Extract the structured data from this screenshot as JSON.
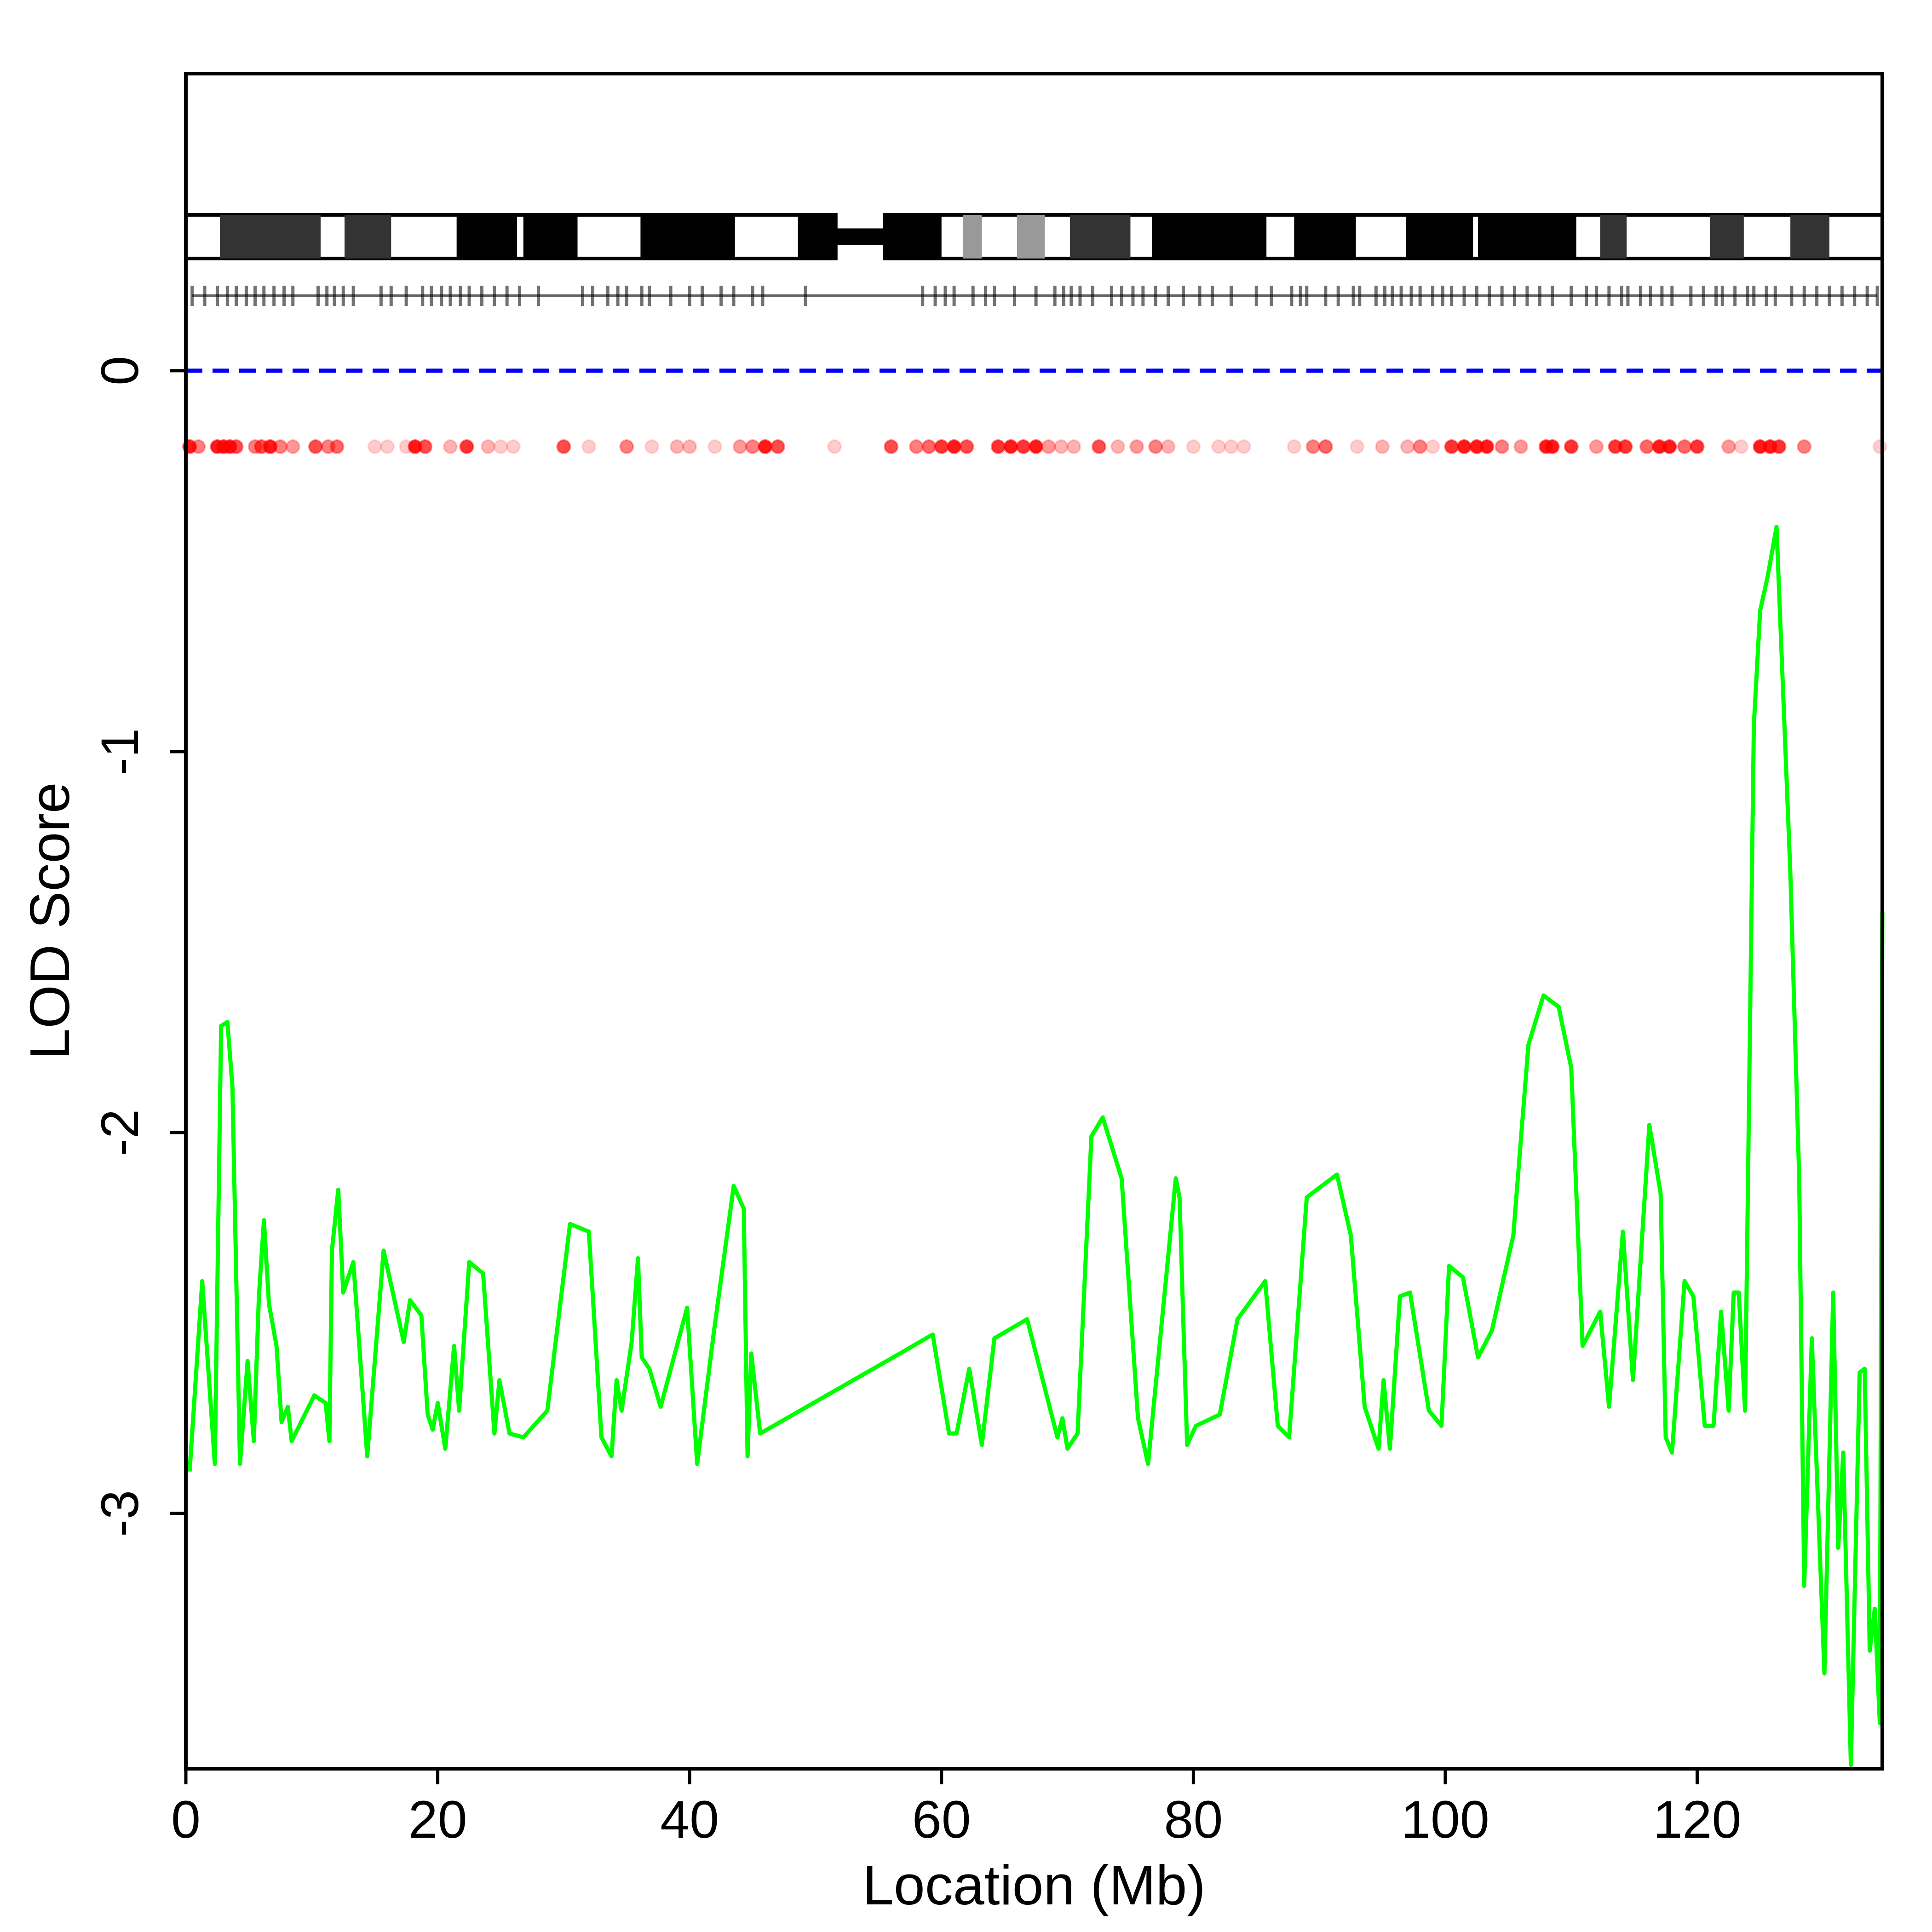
{
  "chart_data": {
    "type": "line",
    "xlabel": "Location (Mb)",
    "ylabel": "LOD Score",
    "xlim": [
      0,
      134.7
    ],
    "ylim": [
      -3.67,
      0.78
    ],
    "xticks": [
      0,
      20,
      40,
      60,
      80,
      100,
      120
    ],
    "yticks": [
      0,
      -1,
      -2,
      -3
    ],
    "color": "#00ff00",
    "reference_line": {
      "y": 0,
      "color": "#0000ff"
    },
    "x": [
      0.3,
      1.3,
      2.3,
      2.8,
      3.3,
      3.7,
      4.3,
      4.9,
      5.4,
      5.8,
      6.2,
      6.6,
      7.2,
      7.6,
      8.1,
      8.4,
      10.2,
      11.1,
      11.4,
      11.6,
      12.1,
      12.5,
      13.3,
      14.4,
      15.7,
      17.3,
      17.8,
      18.7,
      19.2,
      19.6,
      20.0,
      20.6,
      21.3,
      21.7,
      22.5,
      23.6,
      24.5,
      24.9,
      25.7,
      26.8,
      28.7,
      30.5,
      32.0,
      33.0,
      33.8,
      34.2,
      34.6,
      35.4,
      35.9,
      36.2,
      36.8,
      37.7,
      39.8,
      40.6,
      41.9,
      43.5,
      44.3,
      44.6,
      44.9,
      45.6,
      56.7,
      59.3,
      60.6,
      61.2,
      62.2,
      63.2,
      64.2,
      66.8,
      69.2,
      69.6,
      70.0,
      70.8,
      71.9,
      72.8,
      74.3,
      75.6,
      76.4,
      78.6,
      78.9,
      79.5,
      80.2,
      82.1,
      83.5,
      85.7,
      86.7,
      87.6,
      89.0,
      91.4,
      92.5,
      93.6,
      94.7,
      95.1,
      95.6,
      96.4,
      97.2,
      98.7,
      99.7,
      100.3,
      101.4,
      102.6,
      103.7,
      105.4,
      106.6,
      107.8,
      109.0,
      110.0,
      110.9,
      112.3,
      113.0,
      114.1,
      114.9,
      116.2,
      117.1,
      117.5,
      118.0,
      119.0,
      119.7,
      120.6,
      121.3,
      121.9,
      122.5,
      122.9,
      123.3,
      123.8,
      124.5,
      125.0,
      125.6,
      126.3,
      127.4,
      128.1,
      128.5,
      129.1,
      130.1,
      130.8,
      131.2,
      131.6,
      132.2,
      132.9,
      133.3,
      133.7,
      134.1,
      134.5,
      134.7
    ],
    "values": [
      -2.89,
      -2.39,
      -2.87,
      -1.72,
      -1.71,
      -1.88,
      -2.87,
      -2.6,
      -2.81,
      -2.43,
      -2.23,
      -2.45,
      -2.56,
      -2.76,
      -2.72,
      -2.81,
      -2.69,
      -2.71,
      -2.81,
      -2.31,
      -2.15,
      -2.42,
      -2.34,
      -2.85,
      -2.31,
      -2.55,
      -2.44,
      -2.48,
      -2.74,
      -2.78,
      -2.71,
      -2.83,
      -2.56,
      -2.73,
      -2.34,
      -2.37,
      -2.79,
      -2.65,
      -2.79,
      -2.8,
      -2.73,
      -2.24,
      -2.26,
      -2.8,
      -2.85,
      -2.65,
      -2.73,
      -2.55,
      -2.33,
      -2.59,
      -2.62,
      -2.72,
      -2.46,
      -2.87,
      -2.53,
      -2.14,
      -2.2,
      -2.85,
      -2.58,
      -2.79,
      -2.58,
      -2.53,
      -2.79,
      -2.79,
      -2.62,
      -2.82,
      -2.54,
      -2.49,
      -2.8,
      -2.75,
      -2.83,
      -2.79,
      -2.01,
      -1.96,
      -2.12,
      -2.75,
      -2.87,
      -2.12,
      -2.17,
      -2.82,
      -2.77,
      -2.74,
      -2.49,
      -2.39,
      -2.77,
      -2.8,
      -2.17,
      -2.11,
      -2.27,
      -2.72,
      -2.83,
      -2.65,
      -2.83,
      -2.43,
      -2.42,
      -2.73,
      -2.77,
      -2.35,
      -2.38,
      -2.59,
      -2.52,
      -2.27,
      -1.77,
      -1.64,
      -1.67,
      -1.83,
      -2.56,
      -2.47,
      -2.72,
      -2.26,
      -2.65,
      -1.98,
      -2.16,
      -2.8,
      -2.84,
      -2.39,
      -2.43,
      -2.77,
      -2.77,
      -2.47,
      -2.73,
      -2.42,
      -2.42,
      -2.73,
      -0.93,
      -0.63,
      -0.54,
      -0.41,
      -1.32,
      -2.12,
      -3.19,
      -2.54,
      -3.42,
      -2.42,
      -3.09,
      -2.84,
      -3.66,
      -2.63,
      -2.62,
      -3.36,
      -3.25,
      -3.55,
      -1.42
    ],
    "bands": [
      {
        "start": 2.7,
        "end": 10.7,
        "color": "#333333"
      },
      {
        "start": 12.6,
        "end": 16.3,
        "color": "#333333"
      },
      {
        "start": 21.5,
        "end": 26.3,
        "color": "#000000"
      },
      {
        "start": 26.8,
        "end": 31.1,
        "color": "#000000"
      },
      {
        "start": 36.1,
        "end": 43.6,
        "color": "#000000"
      },
      {
        "start": 48.6,
        "end": 51.6,
        "color": "#000000"
      },
      {
        "start": 55.5,
        "end": 60.0,
        "color": "#000000"
      },
      {
        "start": 61.7,
        "end": 63.2,
        "color": "#999999"
      },
      {
        "start": 66.0,
        "end": 68.2,
        "color": "#999999"
      },
      {
        "start": 70.2,
        "end": 75.0,
        "color": "#333333"
      },
      {
        "start": 76.7,
        "end": 85.8,
        "color": "#000000"
      },
      {
        "start": 88.0,
        "end": 92.9,
        "color": "#000000"
      },
      {
        "start": 96.9,
        "end": 102.2,
        "color": "#000000"
      },
      {
        "start": 102.6,
        "end": 110.4,
        "color": "#000000"
      },
      {
        "start": 112.3,
        "end": 114.4,
        "color": "#333333"
      },
      {
        "start": 121.0,
        "end": 123.7,
        "color": "#333333"
      },
      {
        "start": 127.4,
        "end": 130.5,
        "color": "#333333"
      }
    ],
    "centromere": [
      51.6,
      55.5
    ],
    "markers": [
      0.5,
      1.5,
      2.5,
      3.3,
      4,
      4.8,
      5.5,
      6.2,
      7,
      7.8,
      8.5,
      10.5,
      11.2,
      11.8,
      12.5,
      13.3,
      15.5,
      16.3,
      17.5,
      18.8,
      19.5,
      20.3,
      21,
      21.8,
      22.5,
      23.5,
      24.5,
      25.5,
      26.5,
      28,
      31.5,
      32.3,
      33.5,
      34.3,
      35,
      36.2,
      36.8,
      38.5,
      40,
      41,
      42.5,
      43.5,
      45,
      45.8,
      49.2,
      58.5,
      59.5,
      60.3,
      61,
      62.5,
      63.5,
      64.2,
      65.8,
      67.5,
      69,
      69.7,
      70.3,
      71,
      72,
      73.5,
      74.3,
      75.2,
      76,
      77,
      78,
      79.2,
      80.5,
      81.5,
      83,
      85,
      86.2,
      87.8,
      88.5,
      89,
      90.5,
      91.5,
      92.7,
      93.2,
      94.5,
      95.2,
      95.8,
      96.5,
      97.3,
      98,
      99,
      99.8,
      100.5,
      101.5,
      102.5,
      103.5,
      104.5,
      105.5,
      106.5,
      107.5,
      108.5,
      110,
      111.2,
      112,
      113,
      114,
      114.5,
      115.5,
      116.3,
      117.2,
      118,
      119.5,
      120.5,
      121.5,
      122,
      123,
      124,
      124.5,
      125.5,
      126.2,
      127.5,
      128.5,
      129.5,
      130.5,
      131.5,
      132.5,
      133.5,
      134.3
    ],
    "dots": [
      0.3,
      1,
      2.5,
      3,
      3.5,
      4,
      5.5,
      6,
      6.7,
      7.5,
      8.5,
      10.3,
      11.3,
      12,
      15,
      16,
      17.5,
      18.2,
      19,
      21,
      22.3,
      24,
      25,
      26,
      30,
      32,
      35,
      37,
      39,
      40,
      42,
      44,
      45,
      46,
      47,
      51.5,
      56,
      58,
      59,
      60,
      61,
      62,
      64.5,
      65.5,
      66.5,
      67.5,
      68.5,
      69.5,
      70.5,
      72.5,
      74,
      75.5,
      77,
      78,
      80,
      82,
      83,
      84,
      88,
      89.5,
      90.5,
      93,
      95,
      97,
      98,
      99,
      100.5,
      101.5,
      102.5,
      103.3,
      104.5,
      106,
      108,
      108.5,
      110,
      112,
      113.5,
      114.3,
      116,
      117,
      117.8,
      119,
      120,
      122.5,
      123.5,
      125,
      125.8,
      126.5,
      128.5,
      134.5
    ],
    "dot_opacity": [
      0.9,
      0.5,
      0.9,
      0.9,
      0.9,
      0.7,
      0.5,
      0.7,
      0.9,
      0.5,
      0.4,
      0.7,
      0.5,
      0.6,
      0.2,
      0.2,
      0.2,
      0.9,
      0.7,
      0.3,
      0.8,
      0.3,
      0.2,
      0.2,
      0.7,
      0.2,
      0.5,
      0.2,
      0.3,
      0.3,
      0.2,
      0.4,
      0.5,
      0.9,
      0.7,
      0.2,
      0.7,
      0.5,
      0.6,
      0.8,
      0.9,
      0.7,
      0.8,
      0.9,
      0.8,
      0.9,
      0.4,
      0.3,
      0.3,
      0.7,
      0.3,
      0.4,
      0.5,
      0.3,
      0.2,
      0.2,
      0.2,
      0.2,
      0.2,
      0.5,
      0.6,
      0.2,
      0.3,
      0.3,
      0.5,
      0.2,
      0.8,
      0.9,
      0.9,
      0.9,
      0.5,
      0.4,
      0.9,
      0.9,
      0.8,
      0.4,
      0.8,
      0.8,
      0.6,
      0.9,
      0.9,
      0.6,
      0.8,
      0.4,
      0.2,
      0.9,
      0.9,
      0.8,
      0.5,
      0.2
    ]
  }
}
